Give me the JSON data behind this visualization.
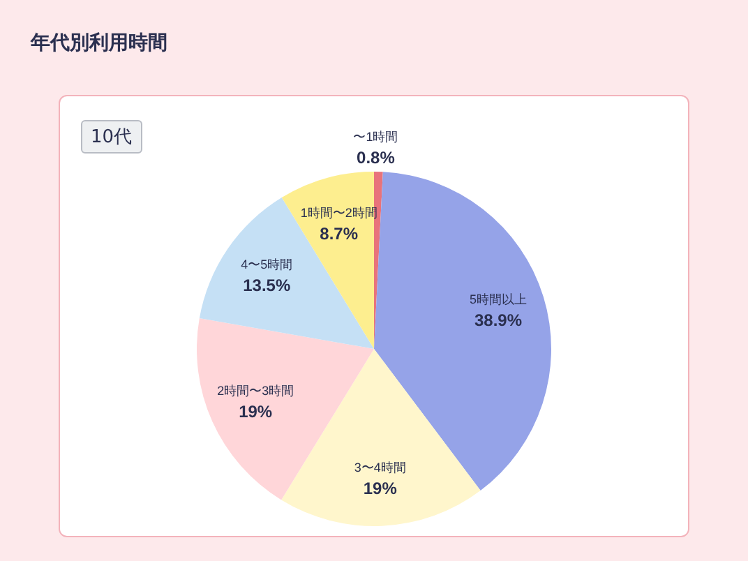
{
  "chart_data": {
    "type": "pie",
    "title": "年代別利用時間",
    "annotations": [
      "10代"
    ],
    "categories": [
      "〜1時間",
      "5時間以上",
      "3〜4時間",
      "2時間〜3時間",
      "4〜5時間",
      "1時間〜2時間"
    ],
    "values": [
      0.8,
      38.9,
      19,
      19,
      13.5,
      8.7
    ],
    "value_labels": [
      "0.8%",
      "38.9%",
      "19%",
      "19%",
      "13.5%",
      "8.7%"
    ],
    "colors": [
      "#e8737b",
      "#95a3e8",
      "#fff6cc",
      "#ffd6d9",
      "#c5e0f5",
      "#fdee8f"
    ],
    "legend": false
  }
}
